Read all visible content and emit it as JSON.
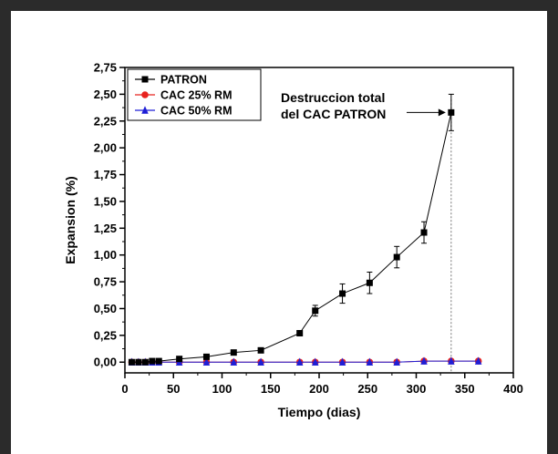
{
  "chart_data": {
    "type": "scatter",
    "xlabel": "Tiempo (dias)",
    "ylabel": "Expansion (%)",
    "xlim": [
      0,
      400
    ],
    "ylim": [
      -0.1,
      2.75
    ],
    "x_ticks": [
      0,
      50,
      100,
      150,
      200,
      250,
      300,
      350,
      400
    ],
    "x_tick_labels": [
      "0",
      "50",
      "100",
      "150",
      "200",
      "250",
      "300",
      "350",
      "400"
    ],
    "y_ticks": [
      0,
      0.25,
      0.5,
      0.75,
      1.0,
      1.25,
      1.5,
      1.75,
      2.0,
      2.25,
      2.5,
      2.75
    ],
    "y_tick_labels": [
      "0,00",
      "0,25",
      "0,50",
      "0,75",
      "1,00",
      "1,25",
      "1,50",
      "1,75",
      "2,00",
      "2,25",
      "2,50",
      "2,75"
    ],
    "grid": false,
    "legend_position": "top-left",
    "series": [
      {
        "name": "PATRON",
        "marker": "square",
        "color": "#000000",
        "connected": true,
        "x": [
          7,
          14,
          21,
          28,
          35,
          56,
          84,
          112,
          140,
          180,
          196,
          224,
          252,
          280,
          308,
          336
        ],
        "y": [
          0.0,
          0.0,
          0.0,
          0.01,
          0.01,
          0.03,
          0.05,
          0.09,
          0.11,
          0.27,
          0.48,
          0.64,
          0.74,
          0.98,
          1.21,
          2.33
        ],
        "err": [
          0.01,
          0.01,
          0.01,
          0.01,
          0.01,
          0.01,
          0.01,
          0.02,
          0.02,
          0.02,
          0.05,
          0.09,
          0.1,
          0.1,
          0.1,
          0.17
        ]
      },
      {
        "name": "CAC 25% RM",
        "marker": "circle",
        "color": "#e8231f",
        "connected": true,
        "x": [
          7,
          14,
          21,
          28,
          35,
          56,
          84,
          112,
          140,
          180,
          196,
          224,
          252,
          280,
          308,
          336,
          364
        ],
        "y": [
          0.0,
          0.0,
          0.0,
          0.0,
          0.0,
          0.0,
          0.0,
          0.0,
          0.0,
          0.0,
          0.0,
          0.0,
          0.0,
          0.0,
          0.01,
          0.01,
          0.01
        ]
      },
      {
        "name": "CAC 50% RM",
        "marker": "triangle",
        "color": "#1f1fd6",
        "connected": true,
        "x": [
          7,
          14,
          21,
          28,
          35,
          56,
          84,
          112,
          140,
          180,
          196,
          224,
          252,
          280,
          308,
          336,
          364
        ],
        "y": [
          0.0,
          0.0,
          0.0,
          0.0,
          0.0,
          0.0,
          0.0,
          0.0,
          0.0,
          0.0,
          0.0,
          0.0,
          0.0,
          0.0,
          0.01,
          0.01,
          0.01
        ]
      }
    ],
    "annotation": {
      "lines": [
        "Destruccion total",
        "del CAC PATRON"
      ],
      "points_to": {
        "x": 336,
        "y": 2.33
      },
      "vline_x": 336
    }
  }
}
